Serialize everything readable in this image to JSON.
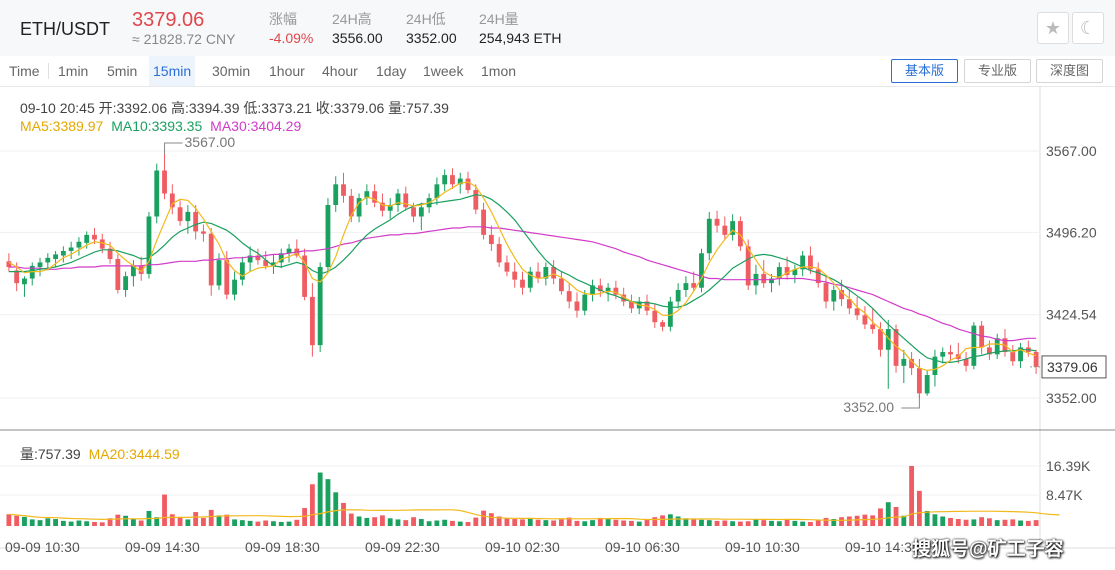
{
  "header": {
    "pair": "ETH/USDT",
    "price": "3379.06",
    "cny": "≈ 21828.72 CNY",
    "change_label": "涨幅",
    "change_value": "-4.09%",
    "high_label": "24H高",
    "high_value": "3556.00",
    "low_label": "24H低",
    "low_value": "3352.00",
    "vol_label": "24H量",
    "vol_value": "254,943 ETH",
    "star_icon": "★",
    "moon_icon": "☾"
  },
  "tabs": [
    {
      "label": "Time"
    },
    {
      "label": "1min"
    },
    {
      "label": "5min"
    },
    {
      "label": "15min",
      "active": true
    },
    {
      "label": "30min"
    },
    {
      "label": "1hour"
    },
    {
      "label": "4hour"
    },
    {
      "label": "1day"
    },
    {
      "label": "1week"
    },
    {
      "label": "1mon"
    }
  ],
  "view_buttons": [
    "基本版",
    "专业版",
    "深度图"
  ],
  "ohlc_info": "09-10 20:45  开:3392.06  高:3394.39  低:3373.21  收:3379.06  量:757.39",
  "ma_legend": {
    "ma5": "MA5:3389.97",
    "ma10": "MA10:3393.35",
    "ma30": "MA30:3404.29"
  },
  "vol_legend": {
    "vol": "量:757.39",
    "ma20": "MA20:3444.59"
  },
  "watermark": "搜狐号@矿工子容",
  "colors": {
    "up": "#1aa160",
    "down": "#ef5c62",
    "ma5": "#f2b91b",
    "ma10": "#1aa160",
    "ma30": "#d23bc8",
    "accent": "#2a6fd6"
  },
  "chart_data": {
    "type": "candlestick",
    "price_axis_ticks": [
      "3567.00",
      "3496.20",
      "3424.54",
      "3352.00"
    ],
    "current_price_label": "3379.06",
    "high_marker": "3567.00",
    "low_marker": "3352.00",
    "volume_axis_ticks": [
      "16.39K",
      "8.47K"
    ],
    "time_labels": [
      "09-09 10:30",
      "09-09 14:30",
      "09-09 18:30",
      "09-09 22:30",
      "09-10 02:30",
      "09-10 06:30",
      "09-10 10:30",
      "09-10 14:30"
    ],
    "candles": [
      [
        3471,
        3478,
        3462,
        3466
      ],
      [
        3463,
        3470,
        3445,
        3452
      ],
      [
        3451,
        3458,
        3440,
        3456
      ],
      [
        3456,
        3470,
        3450,
        3467
      ],
      [
        3466,
        3474,
        3458,
        3470
      ],
      [
        3470,
        3478,
        3463,
        3474
      ],
      [
        3473,
        3480,
        3466,
        3477
      ],
      [
        3476,
        3484,
        3470,
        3480
      ],
      [
        3480,
        3488,
        3473,
        3483
      ],
      [
        3483,
        3492,
        3476,
        3488
      ],
      [
        3487,
        3497,
        3482,
        3494
      ],
      [
        3494,
        3500,
        3486,
        3490
      ],
      [
        3490,
        3495,
        3478,
        3482
      ],
      [
        3482,
        3488,
        3469,
        3473
      ],
      [
        3473,
        3477,
        3443,
        3446
      ],
      [
        3446,
        3462,
        3440,
        3458
      ],
      [
        3458,
        3472,
        3449,
        3467
      ],
      [
        3467,
        3475,
        3454,
        3460
      ],
      [
        3460,
        3514,
        3456,
        3510
      ],
      [
        3510,
        3556,
        3504,
        3550
      ],
      [
        3550,
        3567,
        3525,
        3530
      ],
      [
        3530,
        3538,
        3512,
        3518
      ],
      [
        3518,
        3524,
        3502,
        3506
      ],
      [
        3506,
        3520,
        3495,
        3514
      ],
      [
        3514,
        3520,
        3490,
        3497
      ],
      [
        3497,
        3503,
        3488,
        3495
      ],
      [
        3495,
        3500,
        3441,
        3450
      ],
      [
        3450,
        3478,
        3446,
        3472
      ],
      [
        3472,
        3480,
        3438,
        3442
      ],
      [
        3442,
        3462,
        3437,
        3455
      ],
      [
        3455,
        3475,
        3450,
        3470
      ],
      [
        3470,
        3484,
        3462,
        3476
      ],
      [
        3476,
        3482,
        3468,
        3472
      ],
      [
        3472,
        3480,
        3464,
        3467
      ],
      [
        3467,
        3477,
        3460,
        3470
      ],
      [
        3470,
        3482,
        3465,
        3478
      ],
      [
        3478,
        3486,
        3470,
        3482
      ],
      [
        3482,
        3490,
        3474,
        3476
      ],
      [
        3476,
        3482,
        3437,
        3440
      ],
      [
        3440,
        3452,
        3388,
        3398
      ],
      [
        3398,
        3470,
        3392,
        3466
      ],
      [
        3466,
        3526,
        3462,
        3520
      ],
      [
        3520,
        3545,
        3514,
        3538
      ],
      [
        3538,
        3548,
        3522,
        3528
      ],
      [
        3528,
        3534,
        3505,
        3510
      ],
      [
        3510,
        3530,
        3505,
        3526
      ],
      [
        3526,
        3538,
        3520,
        3532
      ],
      [
        3532,
        3538,
        3518,
        3522
      ],
      [
        3522,
        3530,
        3510,
        3515
      ],
      [
        3515,
        3526,
        3508,
        3520
      ],
      [
        3520,
        3534,
        3514,
        3530
      ],
      [
        3530,
        3536,
        3515,
        3518
      ],
      [
        3518,
        3522,
        3505,
        3510
      ],
      [
        3510,
        3522,
        3498,
        3518
      ],
      [
        3518,
        3530,
        3513,
        3526
      ],
      [
        3526,
        3544,
        3520,
        3538
      ],
      [
        3538,
        3551,
        3532,
        3546
      ],
      [
        3546,
        3552,
        3534,
        3538
      ],
      [
        3538,
        3548,
        3530,
        3543
      ],
      [
        3543,
        3549,
        3530,
        3533
      ],
      [
        3533,
        3538,
        3512,
        3516
      ],
      [
        3516,
        3522,
        3490,
        3494
      ],
      [
        3494,
        3502,
        3480,
        3486
      ],
      [
        3486,
        3492,
        3466,
        3470
      ],
      [
        3470,
        3476,
        3458,
        3462
      ],
      [
        3462,
        3470,
        3448,
        3455
      ],
      [
        3455,
        3462,
        3442,
        3448
      ],
      [
        3448,
        3466,
        3444,
        3462
      ],
      [
        3462,
        3470,
        3452,
        3456
      ],
      [
        3456,
        3470,
        3450,
        3466
      ],
      [
        3466,
        3472,
        3451,
        3456
      ],
      [
        3456,
        3462,
        3442,
        3445
      ],
      [
        3445,
        3452,
        3430,
        3436
      ],
      [
        3436,
        3444,
        3422,
        3428
      ],
      [
        3428,
        3446,
        3424,
        3442
      ],
      [
        3442,
        3455,
        3436,
        3450
      ],
      [
        3450,
        3456,
        3440,
        3445
      ],
      [
        3445,
        3452,
        3436,
        3448
      ],
      [
        3448,
        3454,
        3438,
        3442
      ],
      [
        3442,
        3448,
        3432,
        3436
      ],
      [
        3436,
        3442,
        3426,
        3430
      ],
      [
        3430,
        3440,
        3425,
        3436
      ],
      [
        3436,
        3442,
        3424,
        3428
      ],
      [
        3428,
        3434,
        3413,
        3418
      ],
      [
        3418,
        3420,
        3410,
        3414
      ],
      [
        3414,
        3440,
        3410,
        3436
      ],
      [
        3436,
        3452,
        3430,
        3446
      ],
      [
        3446,
        3458,
        3440,
        3452
      ],
      [
        3452,
        3462,
        3445,
        3448
      ],
      [
        3448,
        3482,
        3444,
        3478
      ],
      [
        3478,
        3514,
        3472,
        3508
      ],
      [
        3508,
        3515,
        3496,
        3502
      ],
      [
        3502,
        3510,
        3490,
        3494
      ],
      [
        3494,
        3512,
        3489,
        3506
      ],
      [
        3506,
        3510,
        3480,
        3484
      ],
      [
        3484,
        3490,
        3446,
        3450
      ],
      [
        3450,
        3468,
        3442,
        3460
      ],
      [
        3460,
        3472,
        3448,
        3452
      ],
      [
        3452,
        3460,
        3444,
        3456
      ],
      [
        3456,
        3470,
        3450,
        3466
      ],
      [
        3466,
        3475,
        3455,
        3459
      ],
      [
        3459,
        3468,
        3452,
        3464
      ],
      [
        3464,
        3480,
        3458,
        3476
      ],
      [
        3476,
        3484,
        3460,
        3464
      ],
      [
        3464,
        3470,
        3448,
        3452
      ],
      [
        3452,
        3458,
        3430,
        3436
      ],
      [
        3436,
        3450,
        3428,
        3446
      ],
      [
        3446,
        3455,
        3432,
        3438
      ],
      [
        3438,
        3446,
        3425,
        3430
      ],
      [
        3430,
        3440,
        3420,
        3424
      ],
      [
        3424,
        3432,
        3412,
        3416
      ],
      [
        3416,
        3430,
        3408,
        3412
      ],
      [
        3412,
        3418,
        3388,
        3394
      ],
      [
        3394,
        3420,
        3360,
        3412
      ],
      [
        3412,
        3416,
        3374,
        3380
      ],
      [
        3380,
        3394,
        3365,
        3386
      ],
      [
        3386,
        3392,
        3372,
        3378
      ],
      [
        3378,
        3386,
        3352,
        3356
      ],
      [
        3356,
        3376,
        3354,
        3372
      ],
      [
        3372,
        3394,
        3362,
        3388
      ],
      [
        3388,
        3396,
        3382,
        3392
      ],
      [
        3392,
        3398,
        3384,
        3390
      ],
      [
        3390,
        3400,
        3382,
        3386
      ],
      [
        3386,
        3392,
        3375,
        3380
      ],
      [
        3380,
        3418,
        3377,
        3415
      ],
      [
        3415,
        3419,
        3390,
        3396
      ],
      [
        3396,
        3402,
        3385,
        3390
      ],
      [
        3390,
        3408,
        3386,
        3404
      ],
      [
        3404,
        3412,
        3388,
        3392
      ],
      [
        3392,
        3398,
        3380,
        3384
      ],
      [
        3384,
        3400,
        3378,
        3396
      ],
      [
        3396,
        3402,
        3388,
        3392
      ],
      [
        3392,
        3394,
        3373,
        3379
      ]
    ],
    "volumes": [
      3.2,
      2.8,
      2.5,
      1.8,
      1.6,
      2.1,
      1.9,
      1.4,
      1.2,
      1.5,
      1.3,
      1.1,
      1.0,
      2.1,
      3.1,
      2.8,
      1.9,
      1.5,
      4.1,
      2.4,
      8.6,
      3.2,
      2.5,
      1.8,
      3.8,
      2.2,
      4.4,
      2.9,
      3.1,
      1.8,
      1.6,
      1.4,
      1.2,
      1.5,
      1.3,
      1.1,
      1.2,
      1.7,
      4.9,
      11.4,
      14.6,
      12.8,
      9.2,
      6.3,
      3.4,
      2.6,
      2.2,
      2.4,
      2.9,
      2.1,
      1.8,
      1.6,
      2.4,
      1.9,
      1.3,
      1.5,
      1.7,
      1.4,
      1.2,
      1.1,
      2.3,
      4.2,
      3.5,
      2.6,
      2.1,
      1.9,
      1.8,
      2.2,
      1.7,
      1.6,
      1.5,
      1.8,
      2.3,
      1.4,
      1.3,
      1.6,
      2.2,
      1.9,
      1.7,
      1.5,
      1.4,
      1.2,
      1.8,
      2.4,
      2.9,
      3.2,
      2.6,
      2.1,
      1.9,
      1.7,
      1.6,
      1.4,
      1.5,
      1.3,
      1.2,
      1.3,
      1.8,
      1.6,
      1.4,
      1.3,
      1.7,
      1.4,
      1.2,
      1.1,
      1.5,
      2.2,
      1.9,
      2.4,
      2.6,
      2.8,
      3.1,
      2.9,
      4.8,
      6.5,
      5.2,
      2.8,
      16.4,
      9.6,
      4.1,
      3.2,
      2.6,
      2.2,
      1.9,
      1.7,
      1.8,
      2.4,
      2.1,
      1.6,
      1.7,
      1.8,
      1.5,
      1.4,
      1.6,
      1.3,
      1.2,
      0.76
    ],
    "ma5": [
      3470,
      3466,
      3461,
      3462,
      3462,
      3464,
      3469,
      3474,
      3477,
      3481,
      3485,
      3488,
      3487,
      3485,
      3478,
      3472,
      3467,
      3462,
      3471,
      3489,
      3505,
      3521,
      3525,
      3524,
      3517,
      3508,
      3497,
      3486,
      3471,
      3463,
      3458,
      3462,
      3465,
      3466,
      3467,
      3473,
      3475,
      3478,
      3470,
      3456,
      3453,
      3461,
      3475,
      3494,
      3511,
      3522,
      3527,
      3525,
      3520,
      3519,
      3522,
      3521,
      3519,
      3520,
      3522,
      3526,
      3531,
      3535,
      3539,
      3540,
      3536,
      3526,
      3514,
      3500,
      3486,
      3474,
      3464,
      3459,
      3456,
      3457,
      3460,
      3457,
      3452,
      3446,
      3443,
      3442,
      3443,
      3445,
      3444,
      3440,
      3436,
      3433,
      3432,
      3429,
      3424,
      3424,
      3428,
      3435,
      3445,
      3456,
      3470,
      3481,
      3490,
      3498,
      3494,
      3482,
      3472,
      3462,
      3458,
      3457,
      3461,
      3464,
      3466,
      3466,
      3465,
      3459,
      3452,
      3444,
      3439,
      3431,
      3426,
      3418,
      3412,
      3404,
      3397,
      3392,
      3384,
      3378,
      3376,
      3377,
      3380,
      3385,
      3388,
      3395,
      3396,
      3396,
      3399,
      3399,
      3398,
      3392,
      3394,
      3391,
      3389
    ],
    "ma10": [
      3462,
      3462,
      3462,
      3463,
      3464,
      3465,
      3466,
      3468,
      3470,
      3473,
      3476,
      3479,
      3481,
      3481,
      3480,
      3478,
      3476,
      3473,
      3474,
      3479,
      3485,
      3492,
      3497,
      3500,
      3503,
      3505,
      3504,
      3501,
      3498,
      3493,
      3487,
      3482,
      3478,
      3472,
      3467,
      3466,
      3468,
      3470,
      3468,
      3463,
      3460,
      3462,
      3466,
      3472,
      3479,
      3487,
      3494,
      3499,
      3503,
      3507,
      3512,
      3516,
      3519,
      3521,
      3521,
      3522,
      3523,
      3524,
      3525,
      3527,
      3529,
      3528,
      3525,
      3520,
      3514,
      3507,
      3498,
      3489,
      3480,
      3472,
      3466,
      3462,
      3459,
      3455,
      3452,
      3449,
      3446,
      3443,
      3441,
      3438,
      3436,
      3435,
      3435,
      3434,
      3432,
      3431,
      3431,
      3433,
      3437,
      3441,
      3446,
      3452,
      3458,
      3465,
      3469,
      3473,
      3476,
      3477,
      3476,
      3474,
      3472,
      3469,
      3466,
      3463,
      3461,
      3458,
      3455,
      3451,
      3446,
      3441,
      3436,
      3430,
      3423,
      3416,
      3410,
      3404,
      3398,
      3392,
      3387,
      3385,
      3383,
      3383,
      3384,
      3386,
      3388,
      3389,
      3391,
      3392,
      3393,
      3393,
      3394,
      3394,
      3393
    ],
    "ma30": [
      3466,
      3466,
      3465,
      3465,
      3465,
      3464,
      3464,
      3465,
      3465,
      3466,
      3466,
      3466,
      3467,
      3467,
      3467,
      3467,
      3467,
      3467,
      3468,
      3468,
      3469,
      3470,
      3471,
      3471,
      3471,
      3472,
      3472,
      3473,
      3473,
      3474,
      3474,
      3475,
      3475,
      3476,
      3477,
      3477,
      3478,
      3479,
      3480,
      3480,
      3481,
      3482,
      3484,
      3486,
      3487,
      3489,
      3491,
      3492,
      3493,
      3494,
      3494,
      3495,
      3495,
      3496,
      3497,
      3498,
      3499,
      3500,
      3500,
      3501,
      3501,
      3501,
      3500,
      3500,
      3499,
      3498,
      3497,
      3496,
      3495,
      3494,
      3493,
      3492,
      3491,
      3490,
      3489,
      3488,
      3486,
      3484,
      3482,
      3479,
      3477,
      3475,
      3472,
      3470,
      3468,
      3466,
      3464,
      3462,
      3460,
      3458,
      3456,
      3456,
      3455,
      3455,
      3455,
      3455,
      3455,
      3455,
      3455,
      3456,
      3456,
      3456,
      3456,
      3455,
      3454,
      3453,
      3451,
      3450,
      3448,
      3446,
      3444,
      3442,
      3439,
      3436,
      3433,
      3430,
      3428,
      3425,
      3423,
      3420,
      3417,
      3415,
      3412,
      3410,
      3408,
      3406,
      3405,
      3403,
      3402,
      3402,
      3403,
      3404,
      3404
    ]
  }
}
